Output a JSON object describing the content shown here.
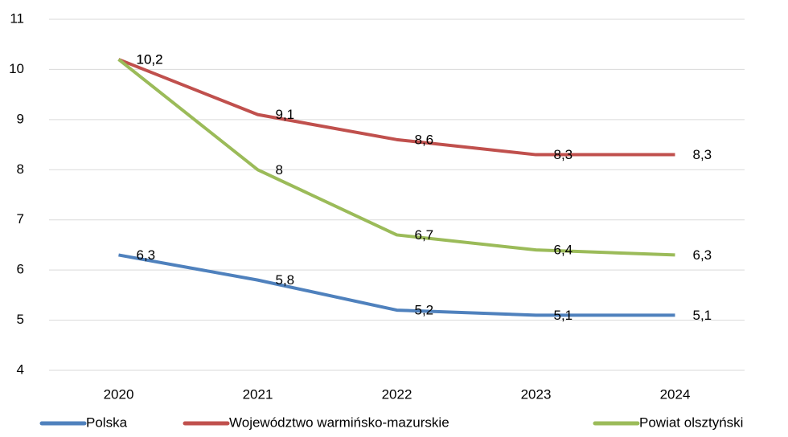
{
  "chart_data": {
    "type": "line",
    "categories": [
      "2020",
      "2021",
      "2022",
      "2023",
      "2024"
    ],
    "series": [
      {
        "name": "Polska",
        "color": "#4f81bd",
        "values": [
          6.3,
          5.8,
          5.2,
          5.1,
          5.1
        ],
        "value_labels": [
          "6,3",
          "5,8",
          "5,2",
          "5,1",
          "5,1"
        ]
      },
      {
        "name": "Województwo warmińsko-mazurskie",
        "color": "#c0504d",
        "values": [
          10.2,
          9.1,
          8.6,
          8.3,
          8.3
        ],
        "value_labels": [
          "10,2",
          "9,1",
          "8,6",
          "8,3",
          "8,3"
        ]
      },
      {
        "name": "Powiat olsztyński",
        "color": "#9bbb59",
        "values": [
          10.2,
          8,
          6.7,
          6.4,
          6.3
        ],
        "value_labels": [
          "10,2",
          "8",
          "6,7",
          "6,4",
          "6,3"
        ]
      }
    ],
    "ylim": [
      4,
      11
    ],
    "yticks": [
      4,
      5,
      6,
      7,
      8,
      9,
      10,
      11
    ],
    "grid": true,
    "legend": "bottom"
  }
}
